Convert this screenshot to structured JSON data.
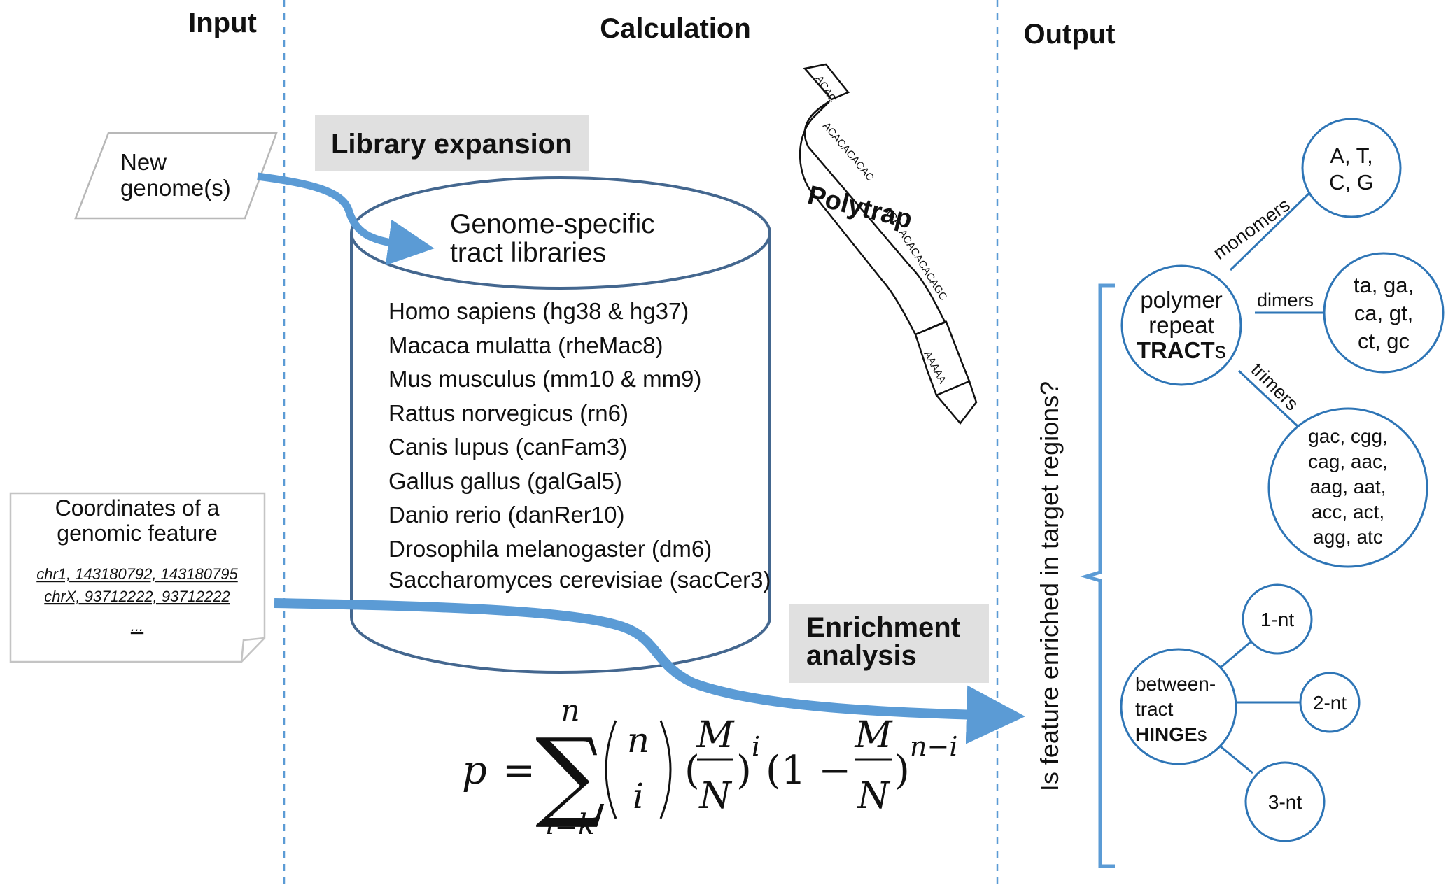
{
  "headers": {
    "input": "Input",
    "calculation": "Calculation",
    "output": "Output"
  },
  "input": {
    "new_genome": [
      "New",
      "genome(s)"
    ],
    "coords_title": [
      "Coordinates of a",
      "genomic feature"
    ],
    "coords_lines": [
      "chr1, 143180792, 143180795",
      "chrX, 93712222, 93712222",
      "..."
    ]
  },
  "calculation": {
    "library_expansion": "Library expansion",
    "db_title": [
      "Genome-specific",
      "tract libraries"
    ],
    "libraries": [
      "Homo sapiens (hg38 & hg37)",
      "Macaca mulatta (rheMac8)",
      "Mus musculus (mm10 & mm9)",
      "Rattus norvegicus (rn6)",
      "Canis lupus (canFam3)",
      "Gallus gallus (galGal5)",
      "Danio rerio (danRer10)",
      "Drosophila melanogaster (dm6)",
      "Saccharomyces cerevisiae (sacCer3)"
    ],
    "logo": {
      "name": "Polytrap",
      "ribbon_text": [
        "ACAC",
        "ACACACACAC",
        "ACA",
        "ACACACACAGC",
        "AAAAA"
      ]
    },
    "enrichment": [
      "Enrichment",
      "analysis"
    ],
    "formula": {
      "lhs": "p",
      "eq": "=",
      "sum_top": "n",
      "sum_bottom": "i=k",
      "binom_top": "n",
      "binom_bottom": "i",
      "frac_num": "M",
      "frac_den": "N",
      "exp_i": "i",
      "one_minus": "(1 −",
      "exp_n_minus_i": "n−i"
    }
  },
  "output": {
    "question": "Is feature enriched in target regions?",
    "tracts": {
      "label": [
        "polymer",
        "repeat",
        "TRACT",
        "s"
      ]
    },
    "monomers": {
      "edge": "monomers",
      "items": [
        "A, T,",
        "C, G"
      ]
    },
    "dimers": {
      "edge": "dimers",
      "items": [
        "ta, ga,",
        "ca, gt,",
        "ct, gc"
      ]
    },
    "trimers": {
      "edge": "trimers",
      "items": [
        "gac, cgg,",
        "cag, aac,",
        "aag, aat,",
        "acc, act,",
        "agg, atc"
      ]
    },
    "hinges": {
      "label": [
        "between-",
        "tract",
        "HINGE",
        "s"
      ]
    },
    "hinge_items": [
      "1-nt",
      "2-nt",
      "3-nt"
    ]
  },
  "colors": {
    "accent": "#5b9bd5",
    "circle_stroke": "#2e75b6",
    "db_stroke": "#44678f",
    "label_bg": "#e0e0e0"
  }
}
